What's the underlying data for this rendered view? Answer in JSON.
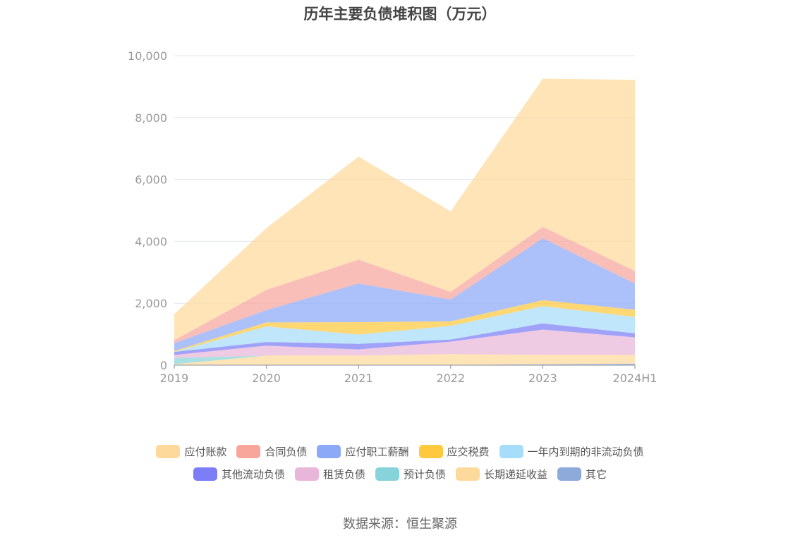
{
  "chart_data": {
    "type": "area",
    "stacked": true,
    "title": "历年主要负债堆积图（万元）",
    "categories": [
      "2019",
      "2020",
      "2021",
      "2022",
      "2023",
      "2024H1"
    ],
    "ylim": [
      0,
      10000
    ],
    "yticks": [
      "0",
      "2,000",
      "4,000",
      "6,000",
      "8,000",
      "10,000"
    ],
    "grid": true,
    "legend_position": "bottom",
    "series": [
      {
        "name": "其它",
        "color": "#8eaadb",
        "values": [
          10,
          10,
          10,
          10,
          30,
          50
        ]
      },
      {
        "name": "长期递延收益",
        "color": "#fdd99b",
        "values": [
          20,
          300,
          300,
          350,
          300,
          280
        ]
      },
      {
        "name": "预计负债",
        "color": "#86d4d9",
        "values": [
          200,
          0,
          0,
          0,
          0,
          0
        ]
      },
      {
        "name": "租赁负债",
        "color": "#e8b6d8",
        "values": [
          100,
          320,
          200,
          400,
          820,
          570
        ]
      },
      {
        "name": "其他流动负债",
        "color": "#7b7ef6",
        "values": [
          100,
          120,
          180,
          70,
          200,
          130
        ]
      },
      {
        "name": "一年内到期的非流动负债",
        "color": "#a6ddfa",
        "values": [
          0,
          500,
          300,
          440,
          560,
          530
        ]
      },
      {
        "name": "应交税费",
        "color": "#ffc83d",
        "values": [
          30,
          130,
          400,
          150,
          190,
          230
        ]
      },
      {
        "name": "应付职工薪酬",
        "color": "#8ca9f8",
        "values": [
          250,
          400,
          1250,
          700,
          2000,
          850
        ]
      },
      {
        "name": "合同负债",
        "color": "#f8a59c",
        "values": [
          100,
          650,
          770,
          250,
          370,
          400
        ]
      },
      {
        "name": "应付账款",
        "color": "#fdd99b",
        "values": [
          840,
          2000,
          3330,
          2600,
          4790,
          6180
        ]
      }
    ]
  },
  "legend": {
    "row1": [
      "应付账款",
      "合同负债",
      "应付职工薪酬",
      "应交税费",
      "一年内到期的非流动负债"
    ],
    "row2": [
      "其他流动负债",
      "租赁负债",
      "预计负债",
      "长期递延收益",
      "其它"
    ],
    "colors1": [
      "#fdd99b",
      "#f8a59c",
      "#8ca9f8",
      "#ffc83d",
      "#a6ddfa"
    ],
    "colors2": [
      "#7b7ef6",
      "#e8b6d8",
      "#86d4d9",
      "#fdd99b",
      "#8eaadb"
    ]
  },
  "source": "数据来源：恒生聚源"
}
